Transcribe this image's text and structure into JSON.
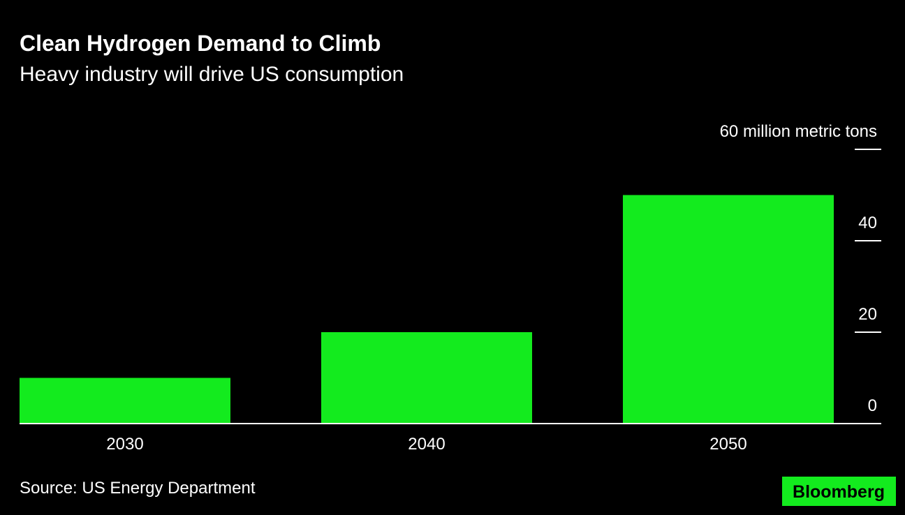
{
  "chart_data": {
    "type": "bar",
    "title": "Clean Hydrogen Demand to Climb",
    "subtitle": "Heavy industry will drive US consumption",
    "categories": [
      "2030",
      "2040",
      "2050"
    ],
    "values": [
      10,
      20,
      50
    ],
    "color": "#13eb1e",
    "ylim": [
      0,
      60
    ],
    "yticks": [
      0,
      20,
      40,
      {
        "value": 60,
        "label": "60 million metric tons"
      }
    ],
    "source": "Source: US Energy Department",
    "logo": "Bloomberg"
  }
}
